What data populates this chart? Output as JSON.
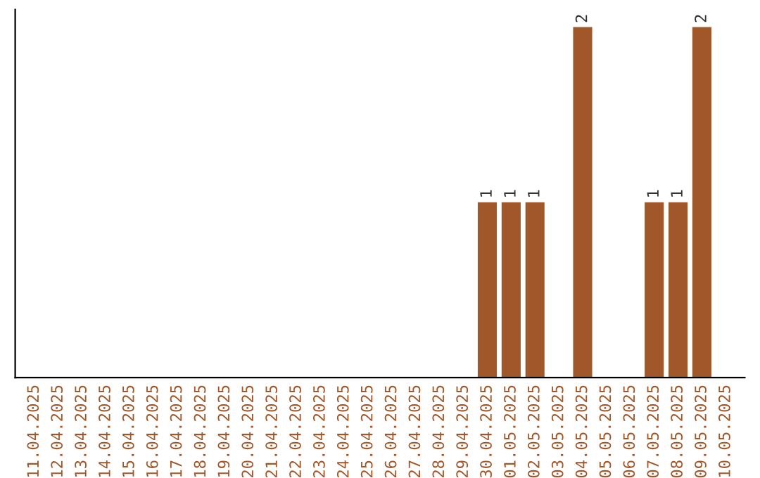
{
  "chart_data": {
    "type": "bar",
    "categories": [
      "11.04.2025",
      "12.04.2025",
      "13.04.2025",
      "14.04.2025",
      "15.04.2025",
      "16.04.2025",
      "17.04.2025",
      "18.04.2025",
      "19.04.2025",
      "20.04.2025",
      "21.04.2025",
      "22.04.2025",
      "23.04.2025",
      "24.04.2025",
      "25.04.2025",
      "26.04.2025",
      "27.04.2025",
      "28.04.2025",
      "29.04.2025",
      "30.04.2025",
      "01.05.2025",
      "02.05.2025",
      "03.05.2025",
      "04.05.2025",
      "05.05.2025",
      "06.05.2025",
      "07.05.2025",
      "08.05.2025",
      "09.05.2025",
      "10.05.2025"
    ],
    "values": [
      null,
      null,
      null,
      null,
      null,
      null,
      null,
      null,
      null,
      null,
      null,
      null,
      null,
      null,
      null,
      null,
      null,
      null,
      null,
      1,
      1,
      1,
      null,
      2,
      null,
      null,
      1,
      1,
      2,
      null
    ],
    "value_labels": [
      null,
      null,
      null,
      null,
      null,
      null,
      null,
      null,
      null,
      null,
      null,
      null,
      null,
      null,
      null,
      null,
      null,
      null,
      null,
      "1",
      "1",
      "1",
      null,
      "2",
      null,
      null,
      "1",
      "1",
      "2",
      null
    ],
    "color": "#a0582a",
    "tick_labels": "x",
    "grid": false,
    "legend": false
  }
}
